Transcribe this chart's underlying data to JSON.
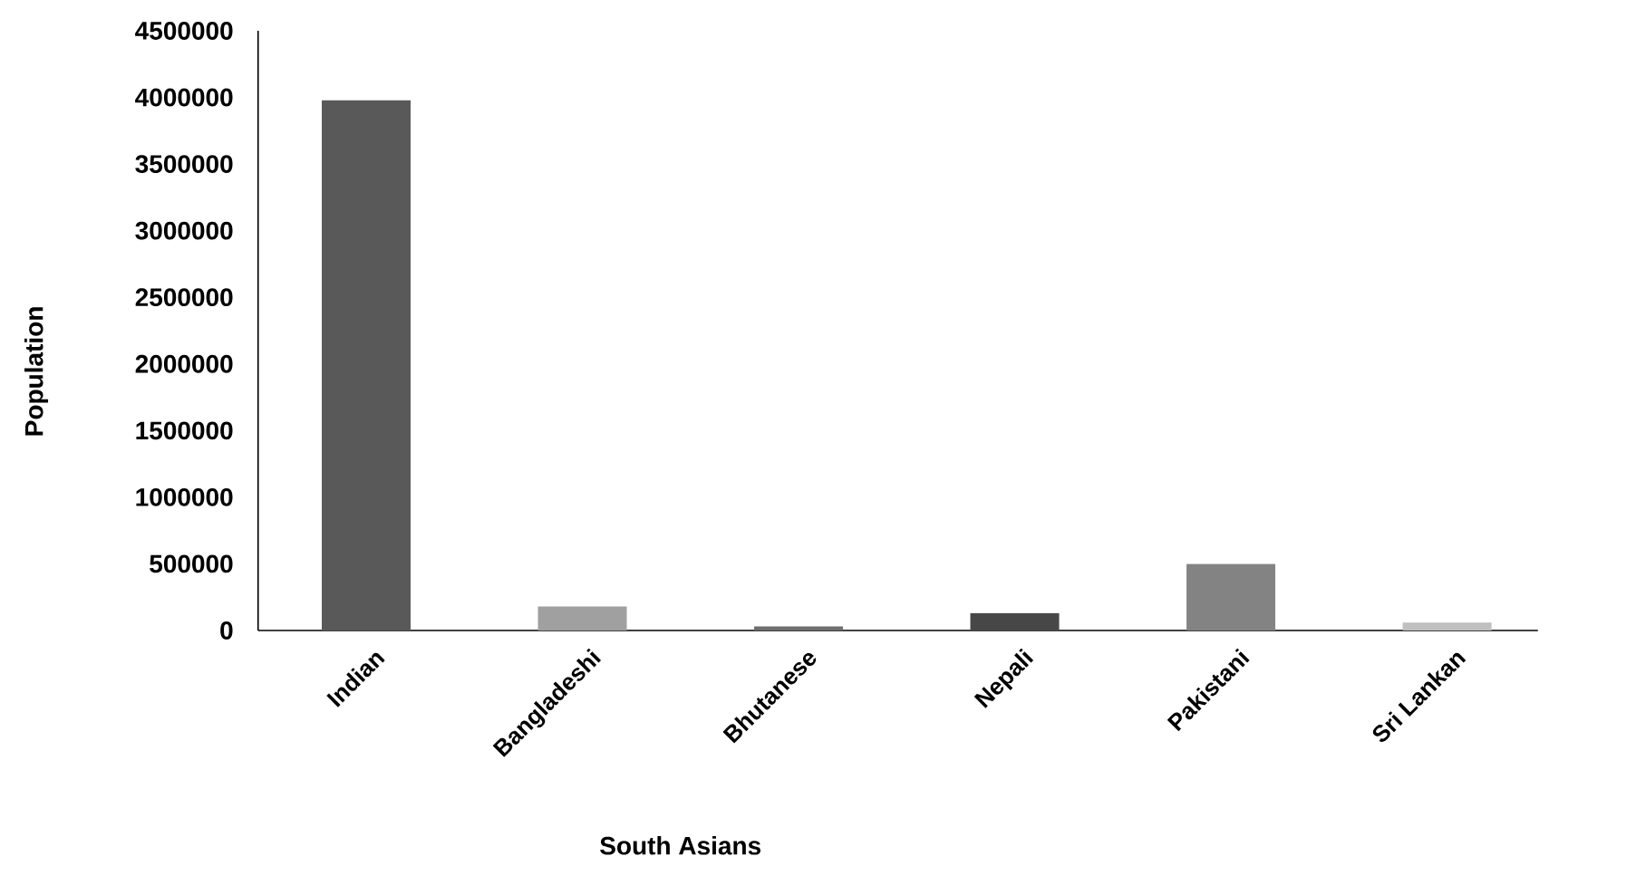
{
  "chart_data": {
    "type": "bar",
    "xlabel": "South Asians",
    "ylabel": "Population",
    "categories": [
      "Indian",
      "Bangladeshi",
      "Bhutanese",
      "Nepali",
      "Pakistani",
      "Sri Lankan"
    ],
    "values": [
      3980000,
      180000,
      30000,
      130000,
      500000,
      60000
    ],
    "colors": [
      "#595959",
      "#a0a0a0",
      "#6e6e6e",
      "#474747",
      "#838383",
      "#bfbfbf"
    ],
    "ylim": [
      0,
      4500000
    ],
    "yticks": [
      0,
      500000,
      1000000,
      1500000,
      2000000,
      2500000,
      3000000,
      3500000,
      4000000,
      4500000
    ],
    "grid": false
  }
}
